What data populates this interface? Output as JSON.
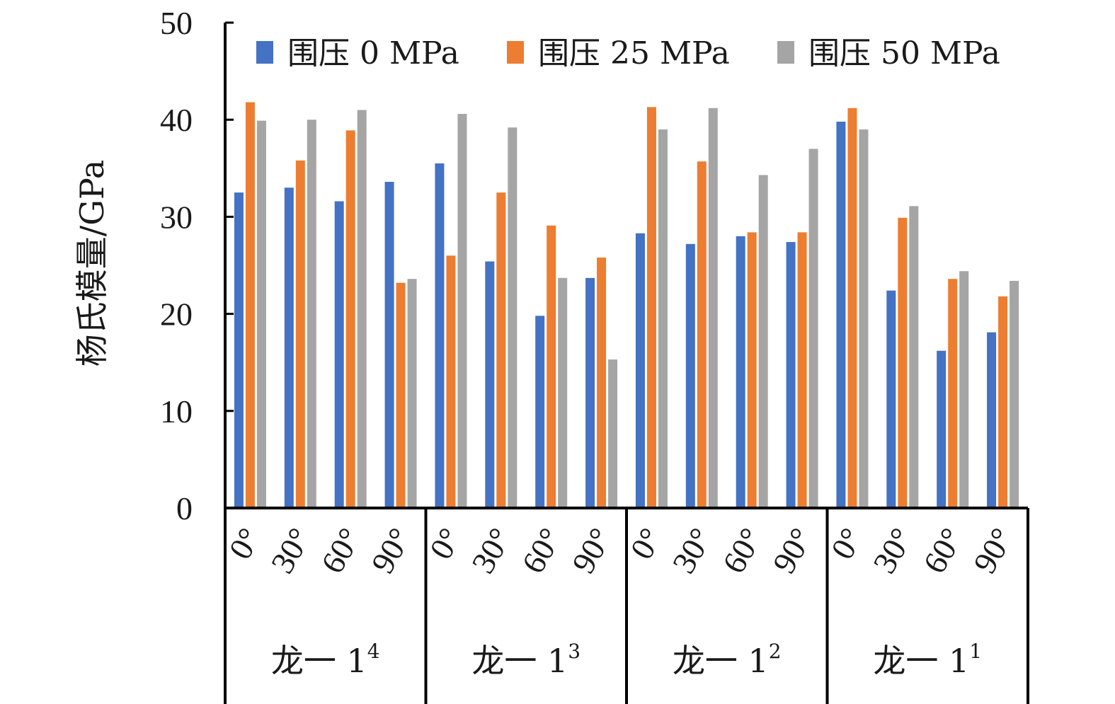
{
  "chart_data": {
    "type": "bar",
    "title": "",
    "ylabel": "杨氏模量/GPa",
    "xlabel": "",
    "ylim": [
      0,
      50
    ],
    "yticks": [
      0,
      10,
      20,
      30,
      40,
      50
    ],
    "grid": false,
    "legend_position": "top",
    "groups": [
      {
        "base": "龙一 1",
        "sup": "4"
      },
      {
        "base": "龙一 1",
        "sup": "3"
      },
      {
        "base": "龙一 1",
        "sup": "2"
      },
      {
        "base": "龙一 1",
        "sup": "1"
      }
    ],
    "categories": [
      "0°",
      "30°",
      "60°",
      "90°",
      "0°",
      "30°",
      "60°",
      "90°",
      "0°",
      "30°",
      "60°",
      "90°",
      "0°",
      "30°",
      "60°",
      "90°"
    ],
    "series": [
      {
        "name": "围压 0 MPa",
        "color": "#4472c4",
        "values": [
          32.5,
          33.0,
          31.6,
          33.6,
          35.5,
          25.4,
          19.8,
          23.7,
          28.3,
          27.2,
          28.0,
          27.4,
          39.8,
          22.4,
          16.2,
          18.1
        ]
      },
      {
        "name": "围压 25 MPa",
        "color": "#ed7d31",
        "values": [
          41.8,
          35.8,
          38.9,
          23.2,
          26.0,
          32.5,
          29.1,
          25.8,
          41.3,
          35.7,
          28.4,
          28.4,
          41.2,
          29.9,
          23.6,
          21.8
        ]
      },
      {
        "name": "围压 50 MPa",
        "color": "#a5a5a5",
        "values": [
          39.9,
          40.0,
          41.0,
          23.6,
          40.6,
          39.2,
          23.7,
          15.3,
          39.0,
          41.2,
          34.3,
          37.0,
          39.0,
          31.1,
          24.4,
          23.4
        ]
      }
    ]
  }
}
